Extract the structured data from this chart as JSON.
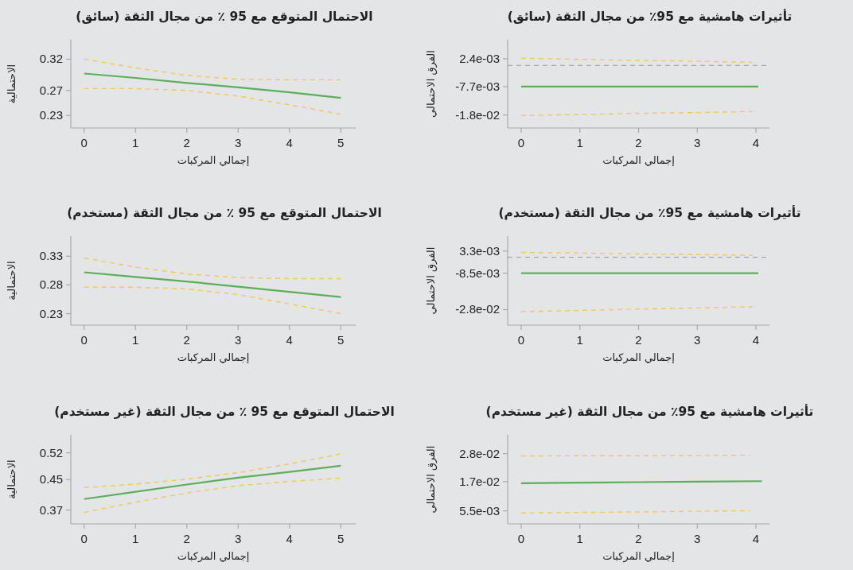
{
  "chart_data": [
    {
      "type": "line",
      "title": "الاحتمال المتوقع مع 95 ٪ من مجال الثقة (سائق)",
      "xlabel": "إجمالي المركبات",
      "ylabel": "الاحتمالية",
      "xlim": [
        -0.26,
        5.29
      ],
      "ylim": [
        0.21,
        0.351
      ],
      "xticks": [
        0,
        1,
        2,
        3,
        4,
        5
      ],
      "yticks": [
        0.23,
        0.27,
        0.32
      ],
      "marker": "none",
      "grid": false,
      "series": [
        {
          "color": "#f2c75c",
          "line_style": "dashed",
          "x": [
            0,
            1,
            2,
            3,
            4,
            5
          ],
          "values": [
            0.32,
            0.306,
            0.294,
            0.288,
            0.287,
            0.287
          ]
        },
        {
          "color": "#f2c75c",
          "line_style": "dashed",
          "x": [
            0,
            1,
            2,
            3,
            4,
            5
          ],
          "values": [
            0.273,
            0.273,
            0.27,
            0.261,
            0.247,
            0.232
          ]
        },
        {
          "color": "#5cae5c",
          "line_style": "solid",
          "x": [
            0,
            1,
            2,
            3,
            4,
            5
          ],
          "values": [
            0.297,
            0.29,
            0.282,
            0.275,
            0.267,
            0.258
          ]
        }
      ]
    },
    {
      "type": "line",
      "title": "تأثيرات هامشية مع 95٪ من مجال الثقة (سائق)",
      "xlabel": "إجمالي المركبات",
      "ylabel": "الفرق الاحتمالي",
      "xlim": [
        -0.23,
        4.23
      ],
      "ylim": [
        -0.0227,
        0.0093
      ],
      "xticks": [
        0,
        1,
        2,
        3,
        4
      ],
      "yticks": [
        {
          "value": -0.018,
          "label": "-1.8e-02"
        },
        {
          "value": -0.0077,
          "label": "-7.7e-03"
        },
        {
          "value": 0.0024,
          "label": "2.4e-03"
        }
      ],
      "marker": "none",
      "grid": false,
      "ref_lines": [
        {
          "axis": "y",
          "value": 0,
          "color": "#999999",
          "line_style": "dashed"
        }
      ],
      "series": [
        {
          "color": "#f2c75c",
          "line_style": "dashed",
          "x": [
            0,
            1,
            2,
            3,
            3.94
          ],
          "values": [
            0.0026,
            0.0022,
            0.0018,
            0.0015,
            0.0011
          ]
        },
        {
          "color": "#f2c75c",
          "line_style": "dashed",
          "x": [
            0,
            1,
            2,
            3,
            3.94
          ],
          "values": [
            -0.0182,
            -0.0178,
            -0.0174,
            -0.0171,
            -0.0167
          ]
        },
        {
          "color": "#5cae5c",
          "line_style": "solid",
          "x": [
            0,
            1,
            2,
            3,
            4.04
          ],
          "values": [
            -0.0077,
            -0.0077,
            -0.0077,
            -0.0077,
            -0.0077
          ]
        }
      ]
    },
    {
      "type": "line",
      "title": "الاحتمال المتوقع مع 95 ٪ من مجال الثقة (مستخدم)",
      "xlabel": "إجمالي المركبات",
      "ylabel": "الاحتمالية",
      "xlim": [
        -0.26,
        5.29
      ],
      "ylim": [
        0.21,
        0.365
      ],
      "xticks": [
        0,
        1,
        2,
        3,
        4,
        5
      ],
      "yticks": [
        0.23,
        0.28,
        0.33
      ],
      "marker": "none",
      "grid": false,
      "series": [
        {
          "color": "#f2c75c",
          "line_style": "dashed",
          "x": [
            0,
            1,
            2,
            3,
            4,
            5
          ],
          "values": [
            0.327,
            0.311,
            0.299,
            0.293,
            0.291,
            0.291
          ]
        },
        {
          "color": "#f2c75c",
          "line_style": "dashed",
          "x": [
            0,
            1,
            2,
            3,
            4,
            5
          ],
          "values": [
            0.276,
            0.276,
            0.273,
            0.263,
            0.247,
            0.23
          ]
        },
        {
          "color": "#5cae5c",
          "line_style": "solid",
          "x": [
            0,
            1,
            2,
            3,
            4,
            5
          ],
          "values": [
            0.302,
            0.294,
            0.286,
            0.277,
            0.268,
            0.259
          ]
        }
      ]
    },
    {
      "type": "line",
      "title": "تأثيرات هامشية مع 95٪ من مجال الثقة (مستخدم)",
      "xlabel": "إجمالي المركبات",
      "ylabel": "الفرق الاحتمالي",
      "xlim": [
        -0.23,
        4.23
      ],
      "ylim": [
        -0.0363,
        0.0113
      ],
      "xticks": [
        0,
        1,
        2,
        3,
        4
      ],
      "yticks": [
        {
          "value": -0.028,
          "label": "-2.8e-02"
        },
        {
          "value": -0.0085,
          "label": "-8.5e-03"
        },
        {
          "value": 0.0033,
          "label": "3.3e-03"
        }
      ],
      "marker": "none",
      "grid": false,
      "ref_lines": [
        {
          "axis": "y",
          "value": 0,
          "color": "#999999",
          "line_style": "dashed"
        }
      ],
      "series": [
        {
          "color": "#f2c75c",
          "line_style": "dashed",
          "x": [
            0,
            1,
            2,
            3,
            3.94
          ],
          "values": [
            0.0026,
            0.0022,
            0.0018,
            0.0014,
            0.001
          ]
        },
        {
          "color": "#f2c75c",
          "line_style": "dashed",
          "x": [
            0,
            1,
            2,
            3,
            3.94
          ],
          "values": [
            -0.0291,
            -0.0284,
            -0.0277,
            -0.0271,
            -0.0264
          ]
        },
        {
          "color": "#5cae5c",
          "line_style": "solid",
          "x": [
            0,
            1,
            2,
            3,
            4.04
          ],
          "values": [
            -0.0085,
            -0.0085,
            -0.0085,
            -0.0085,
            -0.0085
          ]
        }
      ]
    },
    {
      "type": "line",
      "title": "الاحتمال المتوقع مع 95 ٪ من مجال الثقة (غير مستخدم)",
      "xlabel": "إجمالي المركبات",
      "ylabel": "الاحتمالية",
      "xlim": [
        -0.26,
        5.29
      ],
      "ylim": [
        0.334,
        0.567
      ],
      "xticks": [
        0,
        1,
        2,
        3,
        4,
        5
      ],
      "yticks": [
        0.37,
        0.45,
        0.52
      ],
      "marker": "none",
      "grid": false,
      "series": [
        {
          "color": "#f2c75c",
          "line_style": "dashed",
          "x": [
            0,
            1,
            2,
            3,
            4,
            5
          ],
          "values": [
            0.429,
            0.438,
            0.451,
            0.468,
            0.491,
            0.517
          ]
        },
        {
          "color": "#f2c75c",
          "line_style": "dashed",
          "x": [
            0,
            1,
            2,
            3,
            4,
            5
          ],
          "values": [
            0.364,
            0.391,
            0.415,
            0.434,
            0.445,
            0.454
          ]
        },
        {
          "color": "#5cae5c",
          "line_style": "solid",
          "x": [
            0,
            1,
            2,
            3,
            4,
            5
          ],
          "values": [
            0.399,
            0.418,
            0.437,
            0.455,
            0.47,
            0.486
          ]
        }
      ]
    },
    {
      "type": "line",
      "title": "تأثيرات هامشية مع 95٪ من مجال الثقة (غير مستخدم)",
      "xlabel": "إجمالي المركبات",
      "ylabel": "الفرق الاحتمالي",
      "xlim": [
        -0.23,
        4.23
      ],
      "ylim": [
        0.0004,
        0.0354
      ],
      "xticks": [
        0,
        1,
        2,
        3,
        4
      ],
      "yticks": [
        {
          "value": 0.0055,
          "label": "5.5e-03"
        },
        {
          "value": 0.017,
          "label": "1.7e-02"
        },
        {
          "value": 0.028,
          "label": "2.8e-02"
        }
      ],
      "marker": "none",
      "grid": false,
      "series": [
        {
          "color": "#f2c75c",
          "line_style": "dashed",
          "x": [
            0,
            1,
            2,
            3,
            3.9
          ],
          "values": [
            0.0271,
            0.0272,
            0.0272,
            0.0273,
            0.0274
          ]
        },
        {
          "color": "#f2c75c",
          "line_style": "dashed",
          "x": [
            0,
            1,
            2,
            3,
            3.9
          ],
          "values": [
            0.0047,
            0.0049,
            0.0051,
            0.0054,
            0.0056
          ]
        },
        {
          "color": "#5cae5c",
          "line_style": "solid",
          "x": [
            0,
            1,
            2,
            3,
            4.1
          ],
          "values": [
            0.0164,
            0.0166,
            0.0168,
            0.017,
            0.0172
          ]
        }
      ]
    }
  ]
}
